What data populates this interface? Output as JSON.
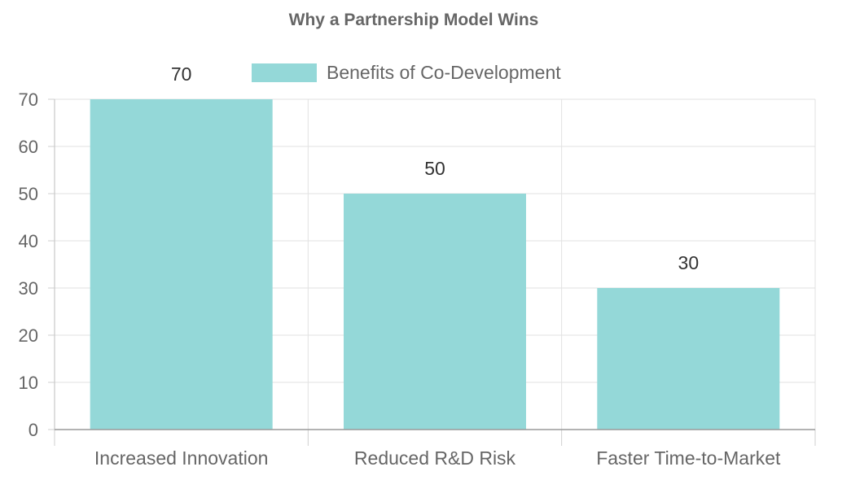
{
  "chart_data": {
    "type": "bar",
    "title": "Why a Partnership Model Wins",
    "categories": [
      "Increased Innovation",
      "Reduced R&D Risk",
      "Faster Time-to-Market"
    ],
    "series": [
      {
        "name": "Benefits of Co-Development",
        "values": [
          70,
          50,
          30
        ],
        "color": "#94d8d8"
      }
    ],
    "ylim": [
      0,
      70
    ],
    "yticks": [
      0,
      10,
      20,
      30,
      40,
      50,
      60,
      70
    ],
    "grid": true,
    "legend": "top-center",
    "data_labels": true
  }
}
